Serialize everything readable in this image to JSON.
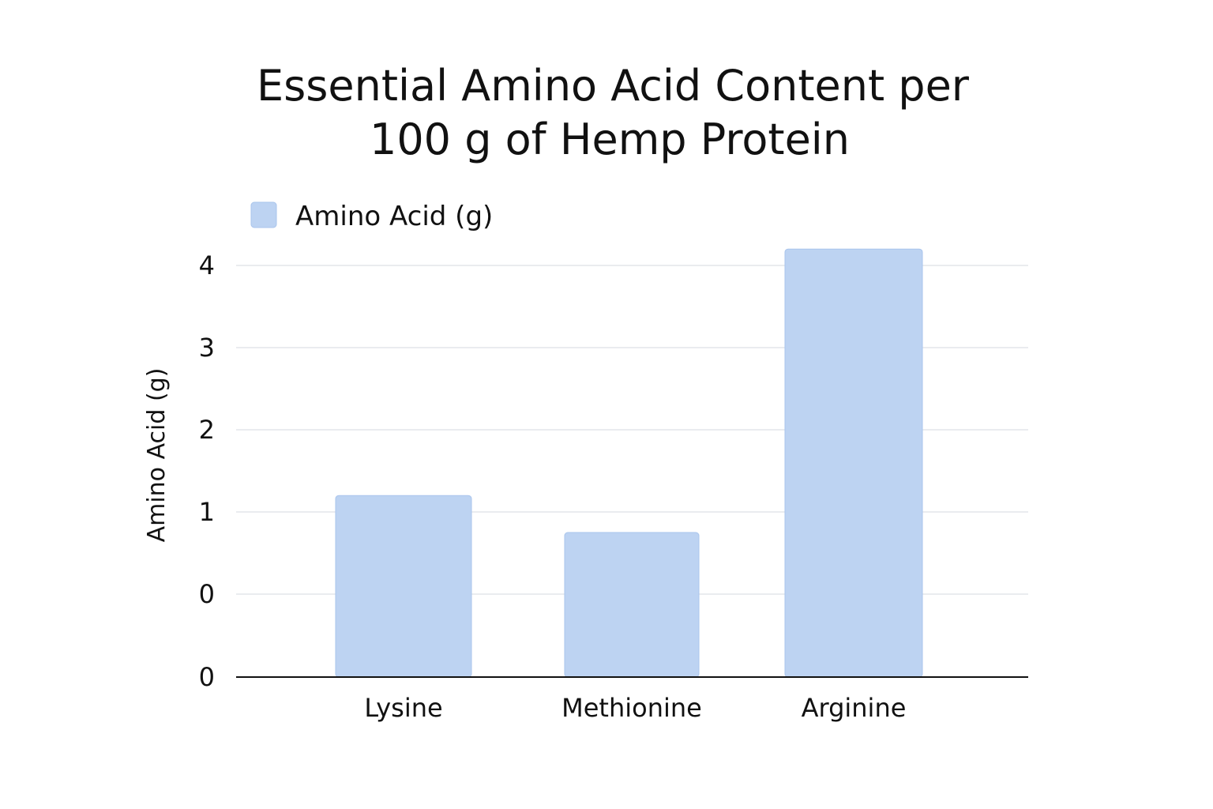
{
  "chart_data": {
    "type": "bar",
    "title_lines": [
      "Essential Amino Acid Content per",
      "100 g of Hemp Protein"
    ],
    "legend": {
      "label": "Amino Acid (g)",
      "placement": "top-left"
    },
    "ylabel": "Amino Acid (g)",
    "xlabel": "",
    "y_tick_labels": [
      "0",
      "0",
      "1",
      "2",
      "3",
      "4"
    ],
    "categories": [
      "Lysine",
      "Methionine",
      "Arginine"
    ],
    "series": [
      {
        "name": "Amino Acid (g)",
        "values": [
          1.2,
          0.75,
          4.2
        ]
      }
    ],
    "ylim": [
      -1,
      4.1
    ],
    "grid": true,
    "colors": {
      "bar": "#bdd3f2",
      "bar_stroke": "#a9c4ec",
      "grid": "#e3e6ea",
      "axis": "#111111"
    }
  }
}
